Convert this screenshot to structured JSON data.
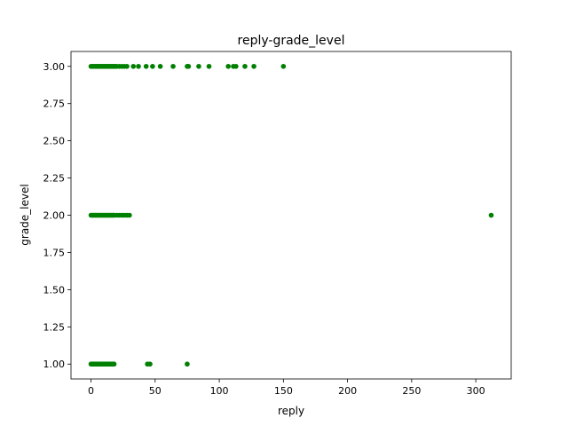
{
  "chart_data": {
    "type": "scatter",
    "title": "reply-grade_level",
    "xlabel": "reply",
    "ylabel": "grade_level",
    "xlim": [
      -15.6,
      327.6
    ],
    "ylim": [
      0.9,
      3.1
    ],
    "xticks": [
      0,
      50,
      100,
      150,
      200,
      250,
      300
    ],
    "yticks": [
      1.0,
      1.25,
      1.5,
      1.75,
      2.0,
      2.25,
      2.5,
      2.75,
      3.0
    ],
    "xtick_labels": [
      "0",
      "50",
      "100",
      "150",
      "200",
      "250",
      "300"
    ],
    "ytick_labels": [
      "1.00",
      "1.25",
      "1.50",
      "1.75",
      "2.00",
      "2.25",
      "2.50",
      "2.75",
      "3.00"
    ],
    "grid": false,
    "marker_color": "#008000",
    "series": [
      {
        "points": [
          [
            0,
            3
          ],
          [
            1,
            3
          ],
          [
            2,
            3
          ],
          [
            3,
            3
          ],
          [
            4,
            3
          ],
          [
            5,
            3
          ],
          [
            6,
            3
          ],
          [
            7,
            3
          ],
          [
            8,
            3
          ],
          [
            9,
            3
          ],
          [
            10,
            3
          ],
          [
            11,
            3
          ],
          [
            12,
            3
          ],
          [
            13,
            3
          ],
          [
            14,
            3
          ],
          [
            15,
            3
          ],
          [
            16,
            3
          ],
          [
            17,
            3
          ],
          [
            18,
            3
          ],
          [
            19,
            3
          ],
          [
            20,
            3
          ],
          [
            22,
            3
          ],
          [
            24,
            3
          ],
          [
            26,
            3
          ],
          [
            28,
            3
          ],
          [
            33,
            3
          ],
          [
            37,
            3
          ],
          [
            43,
            3
          ],
          [
            48,
            3
          ],
          [
            54,
            3
          ],
          [
            64,
            3
          ],
          [
            75,
            3
          ],
          [
            76,
            3
          ],
          [
            84,
            3
          ],
          [
            92,
            3
          ],
          [
            107,
            3
          ],
          [
            111,
            3
          ],
          [
            113,
            3
          ],
          [
            120,
            3
          ],
          [
            127,
            3
          ],
          [
            150,
            3
          ],
          [
            0,
            2
          ],
          [
            1,
            2
          ],
          [
            2,
            2
          ],
          [
            3,
            2
          ],
          [
            4,
            2
          ],
          [
            5,
            2
          ],
          [
            6,
            2
          ],
          [
            7,
            2
          ],
          [
            8,
            2
          ],
          [
            9,
            2
          ],
          [
            10,
            2
          ],
          [
            11,
            2
          ],
          [
            12,
            2
          ],
          [
            13,
            2
          ],
          [
            14,
            2
          ],
          [
            15,
            2
          ],
          [
            16,
            2
          ],
          [
            17,
            2
          ],
          [
            18,
            2
          ],
          [
            20,
            2
          ],
          [
            22,
            2
          ],
          [
            24,
            2
          ],
          [
            26,
            2
          ],
          [
            28,
            2
          ],
          [
            30,
            2
          ],
          [
            312,
            2
          ],
          [
            0,
            1
          ],
          [
            1,
            1
          ],
          [
            2,
            1
          ],
          [
            3,
            1
          ],
          [
            4,
            1
          ],
          [
            5,
            1
          ],
          [
            6,
            1
          ],
          [
            7,
            1
          ],
          [
            8,
            1
          ],
          [
            9,
            1
          ],
          [
            10,
            1
          ],
          [
            11,
            1
          ],
          [
            12,
            1
          ],
          [
            13,
            1
          ],
          [
            14,
            1
          ],
          [
            15,
            1
          ],
          [
            16,
            1
          ],
          [
            17,
            1
          ],
          [
            18,
            1
          ],
          [
            44,
            1
          ],
          [
            46,
            1
          ],
          [
            75,
            1
          ]
        ]
      }
    ]
  }
}
